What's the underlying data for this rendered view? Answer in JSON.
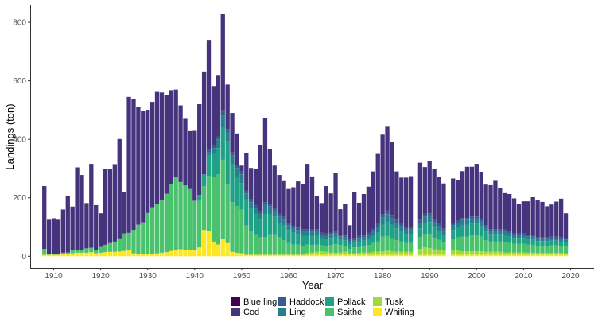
{
  "chart_data": {
    "type": "bar",
    "stacked": true,
    "title": "",
    "xlabel": "Year",
    "ylabel": "Landings (ton)",
    "xlim": [
      1905,
      2025
    ],
    "ylim": [
      -40,
      860
    ],
    "x_ticks": [
      1910,
      1920,
      1930,
      1940,
      1950,
      1960,
      1970,
      1980,
      1990,
      2000,
      2010,
      2020
    ],
    "y_ticks": [
      0,
      200,
      400,
      600,
      800
    ],
    "grid": false,
    "legend_position": "bottom",
    "series_order_bottom_to_top": [
      "Whiting",
      "Tusk",
      "Saithe",
      "Pollack",
      "Ling",
      "Haddock",
      "Cod",
      "Blue ling"
    ],
    "legend": [
      {
        "name": "Blue ling",
        "color": "#440154"
      },
      {
        "name": "Cod",
        "color": "#46337e"
      },
      {
        "name": "Haddock",
        "color": "#365c8d"
      },
      {
        "name": "Ling",
        "color": "#277f8e"
      },
      {
        "name": "Pollack",
        "color": "#1fa187"
      },
      {
        "name": "Saithe",
        "color": "#4ac16d"
      },
      {
        "name": "Tusk",
        "color": "#a0da39"
      },
      {
        "name": "Whiting",
        "color": "#fde725"
      }
    ],
    "x": [
      1908,
      1909,
      1910,
      1911,
      1912,
      1913,
      1914,
      1915,
      1916,
      1917,
      1918,
      1919,
      1920,
      1921,
      1922,
      1923,
      1924,
      1925,
      1926,
      1927,
      1928,
      1929,
      1930,
      1931,
      1932,
      1933,
      1934,
      1935,
      1936,
      1937,
      1938,
      1939,
      1940,
      1941,
      1942,
      1943,
      1944,
      1945,
      1946,
      1947,
      1948,
      1949,
      1950,
      1951,
      1952,
      1953,
      1954,
      1955,
      1956,
      1957,
      1958,
      1959,
      1960,
      1961,
      1962,
      1963,
      1964,
      1965,
      1966,
      1967,
      1968,
      1969,
      1970,
      1971,
      1972,
      1973,
      1974,
      1975,
      1976,
      1977,
      1978,
      1979,
      1980,
      1981,
      1982,
      1983,
      1984,
      1985,
      1986,
      1988,
      1989,
      1990,
      1991,
      1992,
      1993,
      1995,
      1996,
      1997,
      1998,
      1999,
      2000,
      2001,
      2002,
      2003,
      2004,
      2005,
      2006,
      2007,
      2008,
      2009,
      2010,
      2011,
      2012,
      2013,
      2014,
      2015,
      2016,
      2017,
      2018,
      2019
    ],
    "series": [
      {
        "name": "Whiting",
        "values": [
          5,
          5,
          5,
          5,
          8,
          8,
          10,
          12,
          12,
          12,
          14,
          10,
          12,
          14,
          15,
          15,
          16,
          18,
          20,
          10,
          8,
          6,
          8,
          8,
          10,
          12,
          14,
          18,
          22,
          24,
          22,
          20,
          20,
          30,
          90,
          85,
          50,
          40,
          60,
          45,
          15,
          12,
          10,
          5,
          5,
          5,
          5,
          5,
          5,
          5,
          5,
          5,
          5,
          5,
          5,
          5,
          5,
          5,
          5,
          5,
          5,
          5,
          5,
          5,
          5,
          5,
          5,
          5,
          5,
          5,
          5,
          5,
          5,
          5,
          5,
          5,
          5,
          5,
          5,
          5,
          5,
          5,
          5,
          5,
          5,
          5,
          5,
          5,
          5,
          5,
          5,
          5,
          5,
          5,
          5,
          5,
          5,
          5,
          5,
          5,
          5,
          5,
          5,
          5,
          5,
          5,
          5,
          5,
          5,
          5
        ]
      },
      {
        "name": "Tusk",
        "values": [
          0,
          0,
          0,
          0,
          0,
          0,
          0,
          0,
          0,
          0,
          0,
          0,
          0,
          0,
          0,
          0,
          0,
          0,
          0,
          0,
          0,
          0,
          0,
          0,
          0,
          0,
          0,
          0,
          0,
          0,
          0,
          0,
          0,
          0,
          0,
          0,
          0,
          0,
          0,
          0,
          0,
          0,
          0,
          0,
          0,
          0,
          0,
          0,
          0,
          0,
          0,
          0,
          0,
          0,
          0,
          0,
          5,
          8,
          10,
          12,
          10,
          8,
          6,
          8,
          10,
          5,
          5,
          6,
          8,
          8,
          10,
          10,
          12,
          14,
          12,
          10,
          10,
          10,
          10,
          20,
          25,
          22,
          18,
          16,
          14,
          15,
          14,
          12,
          12,
          12,
          12,
          12,
          10,
          10,
          10,
          10,
          8,
          8,
          8,
          8,
          8,
          7,
          7,
          6,
          6,
          6,
          6,
          6,
          6,
          5
        ]
      },
      {
        "name": "Saithe",
        "values": [
          20,
          3,
          3,
          3,
          4,
          5,
          10,
          10,
          10,
          15,
          15,
          12,
          20,
          25,
          30,
          35,
          45,
          60,
          60,
          80,
          100,
          110,
          140,
          160,
          170,
          180,
          200,
          230,
          250,
          230,
          220,
          210,
          170,
          160,
          150,
          190,
          220,
          240,
          270,
          200,
          170,
          160,
          150,
          100,
          80,
          70,
          60,
          60,
          70,
          70,
          60,
          50,
          40,
          35,
          35,
          30,
          30,
          25,
          25,
          20,
          20,
          25,
          30,
          25,
          20,
          15,
          20,
          20,
          20,
          25,
          30,
          35,
          50,
          50,
          45,
          40,
          35,
          30,
          30,
          40,
          45,
          50,
          40,
          35,
          30,
          40,
          45,
          50,
          50,
          55,
          55,
          50,
          40,
          35,
          35,
          35,
          35,
          32,
          30,
          30,
          30,
          28,
          27,
          25,
          25,
          25,
          26,
          26,
          25,
          24
        ]
      },
      {
        "name": "Pollack",
        "values": [
          0,
          0,
          0,
          0,
          0,
          0,
          0,
          0,
          0,
          0,
          0,
          0,
          0,
          0,
          0,
          0,
          0,
          0,
          0,
          0,
          0,
          0,
          0,
          0,
          0,
          0,
          0,
          0,
          0,
          0,
          0,
          0,
          0,
          20,
          40,
          70,
          80,
          90,
          110,
          150,
          130,
          100,
          90,
          90,
          80,
          70,
          60,
          80,
          70,
          60,
          50,
          50,
          45,
          40,
          35,
          35,
          30,
          30,
          30,
          25,
          25,
          25,
          25,
          20,
          20,
          15,
          15,
          20,
          20,
          20,
          25,
          30,
          40,
          50,
          45,
          40,
          35,
          30,
          30,
          30,
          40,
          40,
          35,
          30,
          25,
          30,
          35,
          40,
          40,
          40,
          40,
          35,
          30,
          25,
          25,
          25,
          25,
          22,
          20,
          20,
          20,
          18,
          18,
          16,
          16,
          16,
          16,
          16,
          15,
          15
        ]
      },
      {
        "name": "Ling",
        "values": [
          0,
          0,
          0,
          0,
          0,
          0,
          0,
          0,
          0,
          0,
          0,
          0,
          0,
          0,
          0,
          0,
          0,
          0,
          0,
          0,
          0,
          0,
          0,
          0,
          0,
          0,
          0,
          0,
          0,
          0,
          0,
          0,
          0,
          0,
          0,
          10,
          20,
          30,
          40,
          30,
          30,
          30,
          30,
          20,
          20,
          20,
          20,
          30,
          25,
          20,
          20,
          20,
          15,
          15,
          15,
          15,
          15,
          15,
          15,
          12,
          12,
          12,
          12,
          10,
          10,
          10,
          10,
          12,
          12,
          15,
          15,
          20,
          25,
          25,
          22,
          20,
          18,
          16,
          16,
          20,
          20,
          20,
          18,
          16,
          14,
          15,
          16,
          18,
          18,
          18,
          18,
          16,
          14,
          12,
          12,
          12,
          12,
          11,
          10,
          10,
          10,
          10,
          10,
          9,
          9,
          9,
          9,
          9,
          8,
          8
        ]
      },
      {
        "name": "Haddock",
        "values": [
          0,
          0,
          0,
          0,
          0,
          0,
          0,
          0,
          0,
          0,
          0,
          0,
          0,
          0,
          0,
          0,
          0,
          0,
          0,
          0,
          0,
          0,
          0,
          0,
          0,
          0,
          0,
          0,
          0,
          0,
          0,
          0,
          0,
          0,
          0,
          10,
          10,
          10,
          20,
          10,
          10,
          10,
          10,
          10,
          10,
          10,
          10,
          10,
          10,
          10,
          10,
          10,
          8,
          8,
          8,
          8,
          8,
          8,
          8,
          6,
          6,
          6,
          6,
          6,
          6,
          6,
          6,
          6,
          6,
          8,
          8,
          10,
          12,
          12,
          10,
          10,
          8,
          8,
          8,
          10,
          10,
          10,
          8,
          8,
          6,
          6,
          6,
          6,
          6,
          6,
          6,
          6,
          6,
          6,
          6,
          6,
          6,
          5,
          5,
          5,
          5,
          5,
          5,
          5,
          5,
          5,
          5,
          5,
          5,
          5
        ]
      },
      {
        "name": "Cod",
        "values": [
          215,
          117,
          122,
          117,
          148,
          192,
          150,
          282,
          256,
          155,
          287,
          153,
          115,
          259,
          254,
          265,
          340,
          142,
          465,
          448,
          403,
          381,
          353,
          360,
          382,
          368,
          336,
          320,
          298,
          262,
          228,
          198,
          239,
          310,
          352,
          375,
          202,
          210,
          328,
          152,
          135,
          108,
          20,
          129,
          107,
          125,
          225,
          287,
          187,
          145,
          133,
          122,
          117,
          133,
          158,
          153,
          223,
          182,
          112,
          102,
          162,
          134,
          202,
          87,
          107,
          50,
          160,
          114,
          142,
          157,
          197,
          240,
          272,
          287,
          252,
          165,
          158,
          170,
          175,
          195,
          160,
          180,
          175,
          160,
          155,
          155,
          140,
          160,
          175,
          170,
          180,
          165,
          140,
          150,
          165,
          140,
          125,
          130,
          120,
          100,
          110,
          115,
          130,
          125,
          120,
          105,
          110,
          120,
          133,
          85
        ]
      },
      {
        "name": "Blue ling",
        "values": [
          0,
          0,
          0,
          0,
          0,
          0,
          0,
          0,
          0,
          0,
          0,
          0,
          0,
          0,
          0,
          0,
          0,
          0,
          0,
          0,
          0,
          0,
          0,
          0,
          0,
          0,
          0,
          0,
          0,
          0,
          0,
          0,
          0,
          0,
          0,
          0,
          0,
          0,
          0,
          0,
          0,
          0,
          0,
          0,
          0,
          0,
          0,
          0,
          0,
          0,
          0,
          0,
          0,
          0,
          0,
          0,
          0,
          0,
          0,
          0,
          0,
          0,
          0,
          0,
          0,
          0,
          0,
          0,
          0,
          0,
          0,
          0,
          0,
          0,
          0,
          0,
          0,
          0,
          0,
          0,
          0,
          0,
          0,
          0,
          0,
          0,
          0,
          0,
          0,
          0,
          0,
          0,
          0,
          0,
          0,
          0,
          0,
          0,
          0,
          0,
          0,
          0,
          0,
          0,
          0,
          0,
          0,
          0,
          0,
          0
        ]
      }
    ]
  }
}
